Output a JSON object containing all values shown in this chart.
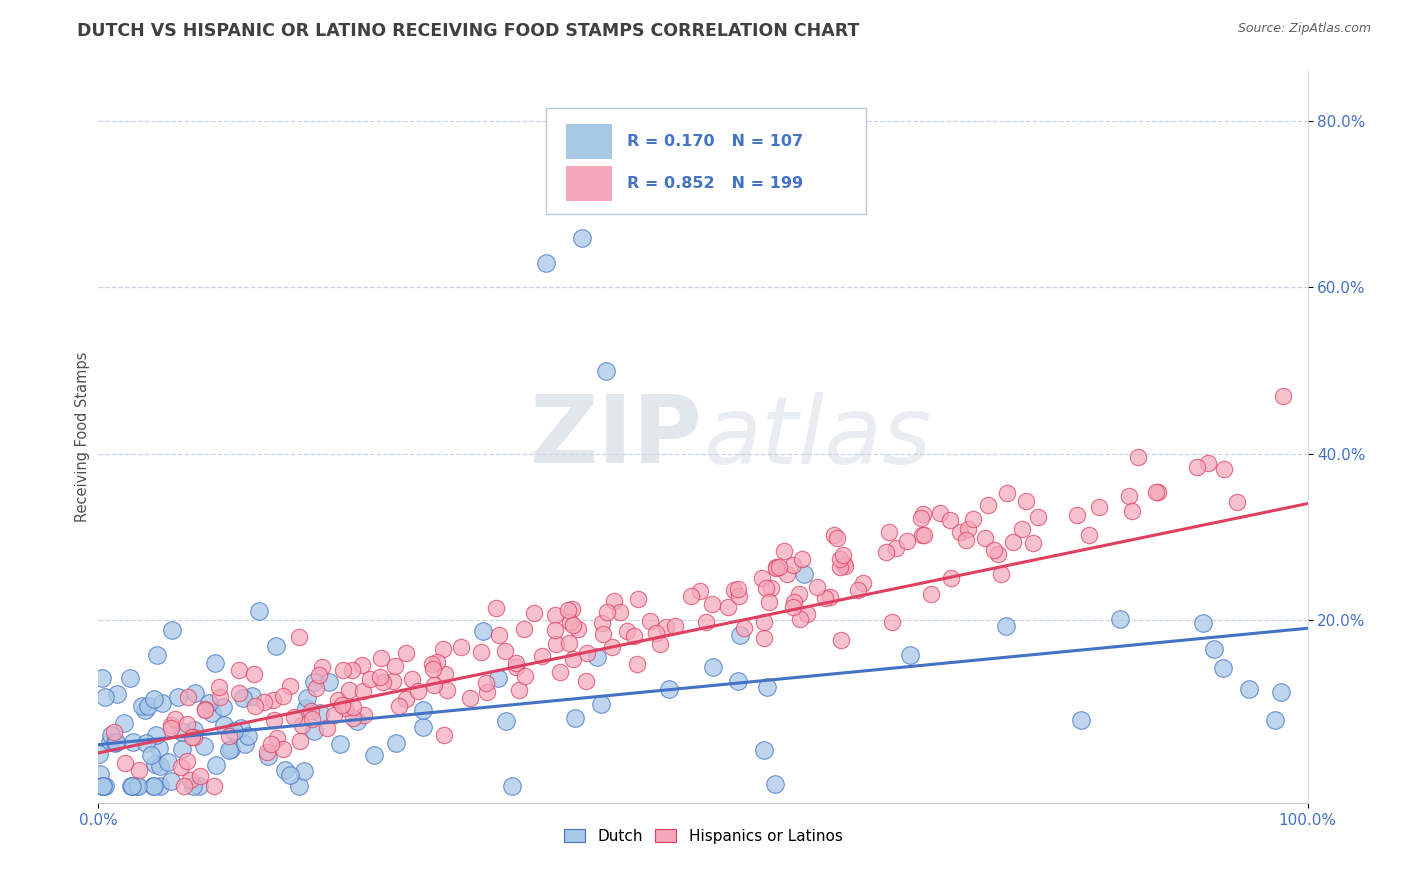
{
  "title": "DUTCH VS HISPANIC OR LATINO RECEIVING FOOD STAMPS CORRELATION CHART",
  "source": "Source: ZipAtlas.com",
  "ylabel": "Receiving Food Stamps",
  "watermark": "ZIPatlas",
  "dutch_R": 0.17,
  "dutch_N": 107,
  "hispanic_R": 0.852,
  "hispanic_N": 199,
  "dutch_color": "#a8c8e8",
  "hispanic_color": "#f4a8ba",
  "dutch_line_color": "#4472c4",
  "hispanic_line_color": "#e04060",
  "background_color": "#ffffff",
  "grid_color": "#c8d4e0",
  "title_color": "#404040",
  "legend_text_color": "#4472c4",
  "axis_color": "#4472c4",
  "legend_R1": "R = 0.170",
  "legend_N1": "N = 107",
  "legend_R2": "R = 0.852",
  "legend_N2": "N = 199",
  "label_dutch": "Dutch",
  "label_hispanic": "Hispanics or Latinos"
}
